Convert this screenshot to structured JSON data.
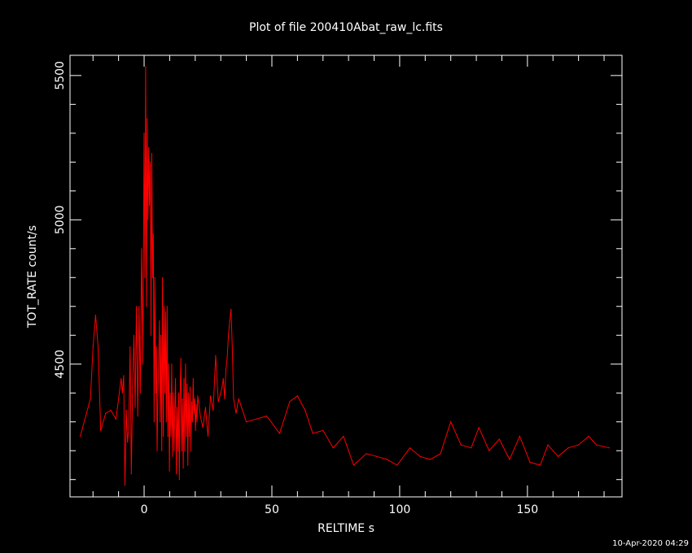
{
  "title": "Plot of file 200410Abat_raw_lc.fits",
  "xlabel": "RELTIME  s",
  "ylabel": "TOT_RATE  count/s",
  "timestamp": "10-Apr-2020 04:29",
  "colors": {
    "background": "#000000",
    "axes": "#ffffff",
    "series": "#ff0000"
  },
  "chart_data": {
    "type": "line",
    "title": "Plot of file 200410Abat_raw_lc.fits",
    "xlabel": "RELTIME  s",
    "ylabel": "TOT_RATE  count/s",
    "xlim": [
      -29,
      187
    ],
    "ylim": [
      4040,
      5570
    ],
    "x_ticks": [
      0,
      50,
      100,
      150
    ],
    "y_ticks": [
      4500,
      5000,
      5500
    ],
    "grid": false,
    "legend": "none",
    "series": [
      {
        "x": [
          -25,
          -21,
          -20,
          -19,
          -18,
          -17,
          -15,
          -13,
          -11,
          -9,
          -8.5,
          -8,
          -7.5,
          -7,
          -6.5,
          -6,
          -5.5,
          -5,
          -4.5,
          -4,
          -3.5,
          -3,
          -2.5,
          -2,
          -1.5,
          -1,
          -0.5,
          0,
          0.3,
          0.6,
          0.9,
          1.2,
          1.5,
          1.8,
          2.1,
          2.4,
          2.7,
          3.0,
          3.3,
          3.6,
          3.9,
          4.2,
          4.5,
          4.8,
          5.1,
          5.4,
          5.7,
          6.0,
          6.3,
          6.6,
          6.9,
          7.2,
          7.5,
          7.8,
          8.1,
          8.4,
          8.7,
          9.0,
          9.3,
          9.6,
          9.9,
          10.2,
          10.5,
          10.8,
          11.1,
          11.4,
          11.7,
          12.0,
          12.3,
          12.6,
          12.9,
          13.2,
          13.5,
          13.8,
          14.1,
          14.4,
          14.7,
          15.0,
          15.3,
          15.6,
          15.9,
          16.2,
          16.5,
          16.8,
          17.1,
          17.4,
          17.7,
          18.0,
          18.3,
          18.6,
          18.9,
          19.2,
          19.5,
          19.8,
          20.1,
          20.4,
          20.7,
          21.0,
          22,
          23,
          24,
          25,
          26,
          27,
          28,
          29,
          30,
          30.5,
          31,
          31.5,
          32,
          32.5,
          33,
          33.5,
          34,
          34.5,
          35,
          36,
          37,
          40,
          44,
          48,
          53,
          57,
          60,
          63,
          66,
          70,
          74,
          78,
          82,
          87,
          91,
          95,
          99,
          104,
          108,
          112,
          116,
          120,
          124,
          128,
          131,
          135,
          139,
          143,
          147,
          151,
          155,
          158,
          162,
          166,
          170,
          174,
          177,
          182
        ],
        "y": [
          4250,
          4380,
          4560,
          4670,
          4560,
          4270,
          4330,
          4340,
          4310,
          4450,
          4400,
          4460,
          4080,
          4340,
          4230,
          4280,
          4560,
          4120,
          4420,
          4600,
          4350,
          4700,
          4320,
          4700,
          4400,
          4900,
          4500,
          5300,
          4800,
          5530,
          4700,
          5350,
          5000,
          5250,
          5050,
          5200,
          4600,
          5230,
          4800,
          4950,
          4300,
          4800,
          4400,
          4560,
          4200,
          4400,
          4500,
          4650,
          4300,
          4600,
          4200,
          4800,
          4250,
          4700,
          4400,
          4680,
          4300,
          4700,
          4250,
          4500,
          4130,
          4400,
          4250,
          4500,
          4180,
          4400,
          4200,
          4350,
          4450,
          4120,
          4350,
          4200,
          4400,
          4100,
          4400,
          4520,
          4200,
          4380,
          4140,
          4450,
          4200,
          4500,
          4250,
          4430,
          4150,
          4400,
          4250,
          4420,
          4200,
          4370,
          4300,
          4450,
          4330,
          4380,
          4270,
          4360,
          4300,
          4390,
          4320,
          4280,
          4350,
          4250,
          4390,
          4340,
          4530,
          4370,
          4400,
          4420,
          4450,
          4380,
          4480,
          4520,
          4600,
          4650,
          4690,
          4560,
          4380,
          4330,
          4380,
          4300,
          4310,
          4320,
          4260,
          4370,
          4390,
          4340,
          4260,
          4270,
          4210,
          4250,
          4150,
          4190,
          4180,
          4170,
          4150,
          4210,
          4180,
          4170,
          4190,
          4300,
          4220,
          4210,
          4280,
          4200,
          4240,
          4170,
          4250,
          4160,
          4150,
          4220,
          4180,
          4210,
          4220,
          4250,
          4220,
          4210
        ]
      }
    ]
  }
}
